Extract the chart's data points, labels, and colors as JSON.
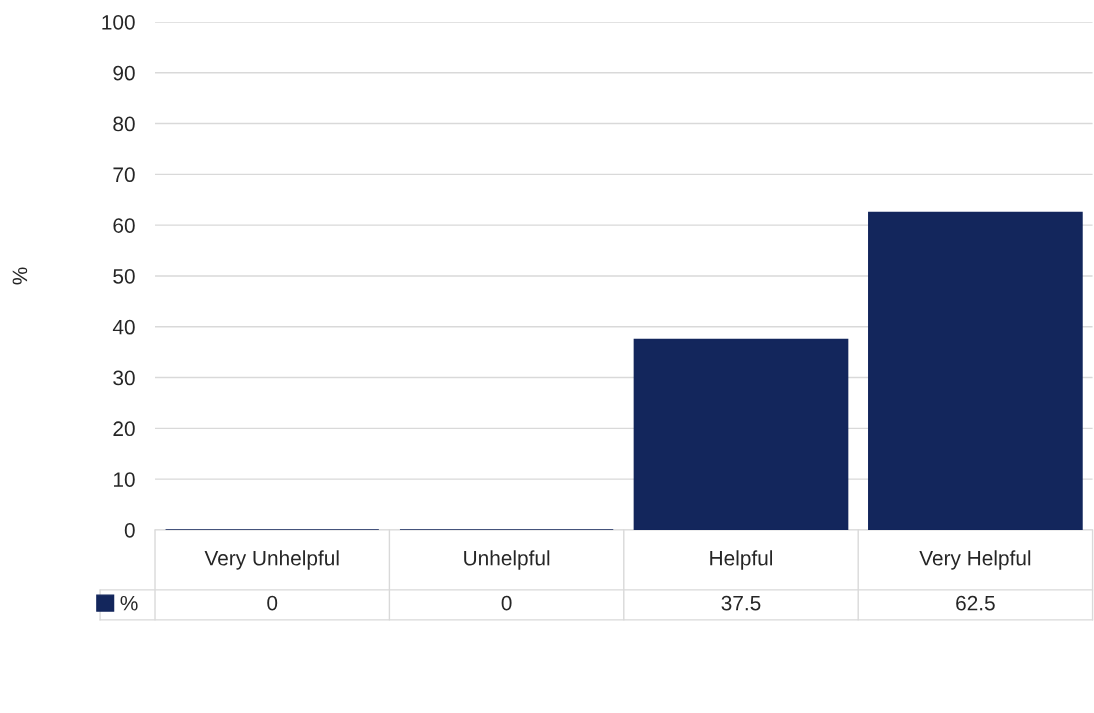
{
  "chart_data": {
    "type": "bar",
    "ylabel": "%",
    "categories": [
      "Very Unhelpful",
      "Unhelpful",
      "Helpful",
      "Very Helpful"
    ],
    "series": [
      {
        "name": "%",
        "color": "#13265c",
        "values": [
          0,
          0,
          37.5,
          62.5
        ]
      }
    ],
    "ylim": [
      0,
      100
    ],
    "yticks": [
      0,
      10,
      20,
      30,
      40,
      50,
      60,
      70,
      80,
      90,
      100
    ],
    "grid": "y",
    "data_labels": true,
    "legend": "bottom left"
  }
}
